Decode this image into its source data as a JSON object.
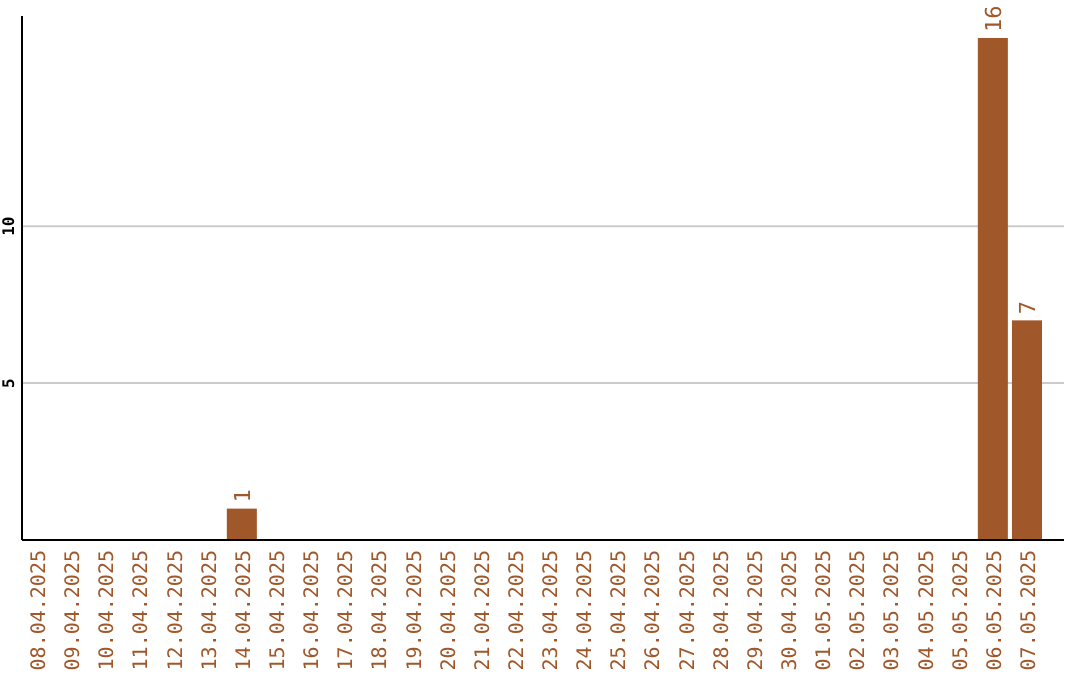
{
  "chart_data": {
    "type": "bar",
    "categories": [
      "08.04.2025",
      "09.04.2025",
      "10.04.2025",
      "11.04.2025",
      "12.04.2025",
      "13.04.2025",
      "14.04.2025",
      "15.04.2025",
      "16.04.2025",
      "17.04.2025",
      "18.04.2025",
      "19.04.2025",
      "20.04.2025",
      "21.04.2025",
      "22.04.2025",
      "23.04.2025",
      "24.04.2025",
      "25.04.2025",
      "26.04.2025",
      "27.04.2025",
      "28.04.2025",
      "29.04.2025",
      "30.04.2025",
      "01.05.2025",
      "02.05.2025",
      "03.05.2025",
      "04.05.2025",
      "05.05.2025",
      "06.05.2025",
      "07.05.2025"
    ],
    "values": [
      0,
      0,
      0,
      0,
      0,
      0,
      1,
      0,
      0,
      0,
      0,
      0,
      0,
      0,
      0,
      0,
      0,
      0,
      0,
      0,
      0,
      0,
      0,
      0,
      0,
      0,
      0,
      0,
      16,
      7
    ],
    "value_labels": [
      null,
      null,
      null,
      null,
      null,
      null,
      "1",
      null,
      null,
      null,
      null,
      null,
      null,
      null,
      null,
      null,
      null,
      null,
      null,
      null,
      null,
      null,
      null,
      null,
      null,
      null,
      null,
      null,
      "16",
      "7"
    ],
    "color": "#a0582a",
    "ylim": [
      0,
      16.7
    ],
    "yticks": [
      5,
      10
    ],
    "grid": "y"
  }
}
